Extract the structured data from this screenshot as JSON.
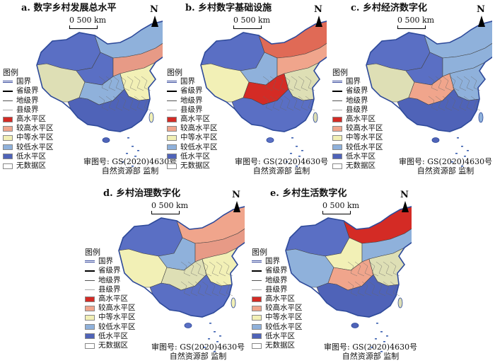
{
  "panels": [
    {
      "title": "a. 数字乡村发展总水平",
      "scheme": [
        "#5a6fc4",
        "#8fb1db",
        "#dedfb5",
        "#5a6fc4",
        "#e79a86",
        "#8fb1db",
        "#f2f0b6",
        "#4f63b8"
      ]
    },
    {
      "title": "b. 乡村数字基础设施",
      "scheme": [
        "#5a6fc4",
        "#e06a56",
        "#f2f0b6",
        "#8fb1db",
        "#f0a58c",
        "#d42b25",
        "#dedfb5",
        "#5a6fc4"
      ]
    },
    {
      "title": "c. 乡村经济数字化",
      "scheme": [
        "#5a6fc4",
        "#8fb1db",
        "#dedfb5",
        "#5a6fc4",
        "#8fb1db",
        "#f0a58c",
        "#8fb1db",
        "#4f63b8"
      ]
    },
    {
      "title": "d. 乡村治理数字化",
      "scheme": [
        "#5a6fc4",
        "#f0a58c",
        "#f2f0b6",
        "#8fb1db",
        "#e79a86",
        "#dedfb5",
        "#f2f0b6",
        "#5a6fc4"
      ]
    },
    {
      "title": "e. 乡村生活数字化",
      "scheme": [
        "#5a6fc4",
        "#d42b25",
        "#8fb1db",
        "#f2f0b6",
        "#8fb1db",
        "#f0a58c",
        "#dedfb5",
        "#4f63b8"
      ]
    }
  ],
  "scale_text": "0  500 km",
  "north_label": "N",
  "legend": {
    "title": "图例",
    "lines": [
      {
        "label": "国界",
        "style": "national",
        "color": "#3a4c9e"
      },
      {
        "label": "省级界",
        "style": "province",
        "color": "#000000"
      },
      {
        "label": "地级界",
        "style": "prefecture",
        "color": "#555555"
      },
      {
        "label": "县级界",
        "style": "county",
        "color": "#aaaaaa"
      }
    ],
    "classes": [
      {
        "label": "高水平区",
        "color": "#d42b25"
      },
      {
        "label": "较高水平区",
        "color": "#f0a58c"
      },
      {
        "label": "中等水平区",
        "color": "#f2f0b6"
      },
      {
        "label": "较低水平区",
        "color": "#8fb1db"
      },
      {
        "label": "低水平区",
        "color": "#4f63b8"
      },
      {
        "label": "无数据区",
        "color": "#ffffff"
      }
    ]
  },
  "review_number": "审图号: GS(2020)4630号",
  "review_authority": "自然资源部 监制"
}
